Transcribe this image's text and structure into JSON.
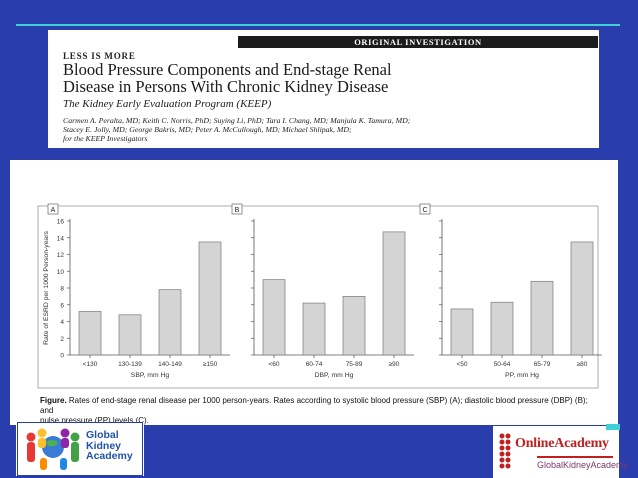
{
  "header": {
    "banner": "ORIGINAL INVESTIGATION",
    "kicker": "LESS IS MORE",
    "title_line1": "Blood Pressure Components and End-stage Renal",
    "title_line2": "Disease in Persons With Chronic Kidney Disease",
    "subtitle": "The Kidney Early Evaluation Program (KEEP)",
    "authors_line1": "Carmen A. Peralta, MD; Keith C. Norris, PhD; Suying Li, PhD; Tara I. Chang, MD; Manjula K. Tamura, MD;",
    "authors_line2": "Stacey E. Jolly, MD; George Bakris, MD; Peter A. McCullough, MD; Michael Shlipak, MD;",
    "authors_line3": "for the KEEP Investigators"
  },
  "figure": {
    "caption_label": "Figure.",
    "caption_line1": "Rates of end-stage renal disease per 1000 person-years. Rates according to systolic blood pressure (SBP) (A); diastolic blood pressure (DBP) (B); and",
    "caption_line2": "pulse pressure (PP) levels (C)."
  },
  "chart_data": [
    {
      "type": "bar",
      "panel": "A",
      "categories": [
        "<130",
        "130-139",
        "140-149",
        "≥150"
      ],
      "values": [
        5.2,
        4.8,
        7.8,
        13.5
      ],
      "xlabel": "SBP, mm Hg",
      "ylabel": "Rate of ESRD per 1000 Person-years",
      "ylim": [
        0,
        16
      ],
      "yticks": [
        0,
        2,
        4,
        6,
        8,
        10,
        12,
        14,
        16
      ],
      "grid": false
    },
    {
      "type": "bar",
      "panel": "B",
      "categories": [
        "<60",
        "60-74",
        "75-89",
        "≥90"
      ],
      "values": [
        9.0,
        6.2,
        7.0,
        14.7
      ],
      "xlabel": "DBP, mm Hg",
      "ylim": [
        0,
        16
      ],
      "grid": false
    },
    {
      "type": "bar",
      "panel": "C",
      "categories": [
        "<50",
        "50-64",
        "65-79",
        "≥80"
      ],
      "values": [
        5.5,
        6.3,
        8.8,
        13.5
      ],
      "xlabel": "PP, mm Hg",
      "ylim": [
        0,
        16
      ],
      "grid": false
    }
  ],
  "logos": {
    "left_line1": "Global",
    "left_line2": "Kidney",
    "left_line3": "Academy",
    "right_main": "OnlineAcademy",
    "right_sub": "GlobalKidneyAcademy"
  },
  "colors": {
    "background": "#2a3dad",
    "accent_rule": "#3fd0d6",
    "bar_fill": "#d4d4d4",
    "bar_stroke": "#7a7a7a"
  }
}
